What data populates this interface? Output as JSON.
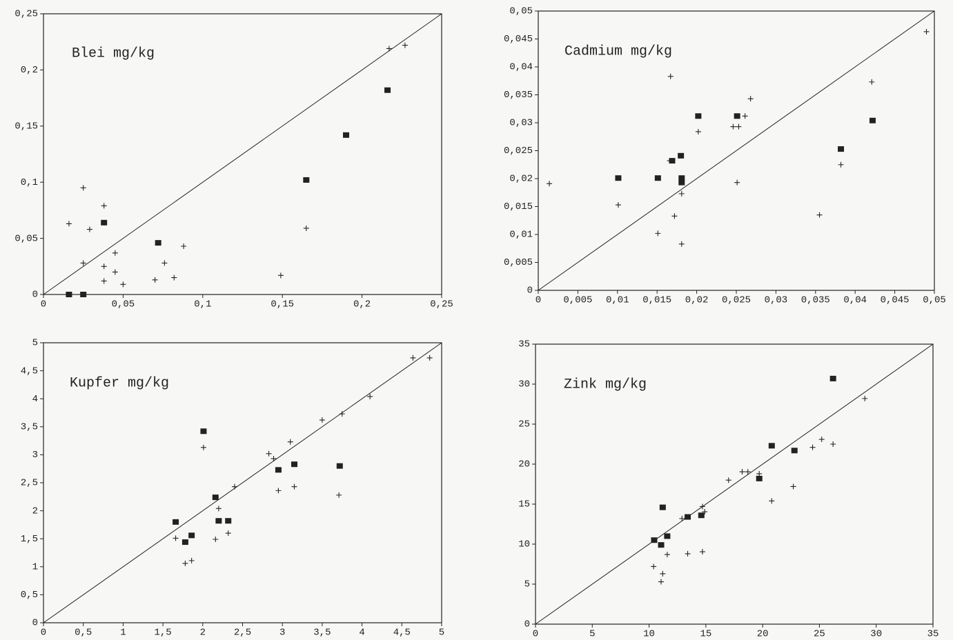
{
  "chart_data": [
    {
      "type": "scatter",
      "title": "Blei mg/kg",
      "xlim": [
        0,
        0.25
      ],
      "ylim": [
        0,
        0.25
      ],
      "xticks": [
        0,
        {
          "value": 0.05,
          "label": "0,05"
        },
        {
          "value": 0.1,
          "label": "0,1"
        },
        {
          "value": 0.15,
          "label": "0,15"
        },
        {
          "value": 0.2,
          "label": "0,2"
        },
        {
          "value": 0.25,
          "label": "0,25"
        }
      ],
      "yticks": [
        0,
        {
          "value": 0.05,
          "label": "0,05"
        },
        {
          "value": 0.1,
          "label": "0,1"
        },
        {
          "value": 0.15,
          "label": "0,15"
        },
        {
          "value": 0.2,
          "label": "0,2"
        },
        {
          "value": 0.25,
          "label": "0,25"
        }
      ],
      "series": [
        {
          "marker": "square",
          "color": "#222222",
          "x": [
            0.016,
            0.025,
            0.038,
            0.072,
            0.19,
            0.165,
            0.216
          ],
          "values": [
            0,
            0,
            0.064,
            0.046,
            0.142,
            0.102,
            0.182
          ]
        },
        {
          "marker": "plus",
          "color": "#222222",
          "x": [
            0.016,
            0.025,
            0.029,
            0.025,
            0.038,
            0.038,
            0.038,
            0.045,
            0.045,
            0.05,
            0.076,
            0.07,
            0.082,
            0.088,
            0.149,
            0.165,
            0.217,
            0.227
          ],
          "values": [
            0.063,
            0.095,
            0.058,
            0.028,
            0.079,
            0.025,
            0.012,
            0.02,
            0.037,
            0.009,
            0.028,
            0.013,
            0.015,
            0.043,
            0.017,
            0.059,
            0.219,
            0.222
          ]
        }
      ]
    },
    {
      "type": "scatter",
      "title": "Cadmium mg/kg",
      "xlim": [
        0,
        0.05
      ],
      "ylim": [
        0,
        0.05
      ],
      "xticks": [
        0,
        {
          "value": 0.005,
          "label": "0,005"
        },
        {
          "value": 0.01,
          "label": "0,01"
        },
        {
          "value": 0.015,
          "label": "0,015"
        },
        {
          "value": 0.02,
          "label": "0,02"
        },
        {
          "value": 0.025,
          "label": "0,025"
        },
        {
          "value": 0.03,
          "label": "0,03"
        },
        {
          "value": 0.035,
          "label": "0,035"
        },
        {
          "value": 0.04,
          "label": "0,04"
        },
        {
          "value": 0.045,
          "label": "0,045"
        },
        {
          "value": 0.05,
          "label": "0,05"
        }
      ],
      "yticks": [
        0,
        {
          "value": 0.005,
          "label": "0,005"
        },
        {
          "value": 0.01,
          "label": "0,01"
        },
        {
          "value": 0.015,
          "label": "0,015"
        },
        {
          "value": 0.02,
          "label": "0,02"
        },
        {
          "value": 0.025,
          "label": "0,025"
        },
        {
          "value": 0.03,
          "label": "0,03"
        },
        {
          "value": 0.035,
          "label": "0,035"
        },
        {
          "value": 0.04,
          "label": "0,04"
        },
        {
          "value": 0.045,
          "label": "0,045"
        },
        {
          "value": 0.05,
          "label": "0,05"
        }
      ],
      "series": [
        {
          "marker": "square",
          "color": "#222222",
          "x": [
            0.0101,
            0.0151,
            0.0169,
            0.018,
            0.0181,
            0.0181,
            0.0202,
            0.0251,
            0.0382,
            0.0422
          ],
          "values": [
            0.0201,
            0.0201,
            0.0232,
            0.0241,
            0.0201,
            0.0193,
            0.0312,
            0.0312,
            0.0253,
            0.0304
          ]
        },
        {
          "marker": "plus",
          "color": "#222222",
          "x": [
            0.0014,
            0.0101,
            0.0151,
            0.0167,
            0.0166,
            0.0181,
            0.0172,
            0.0181,
            0.0202,
            0.0246,
            0.0253,
            0.0261,
            0.0268,
            0.0251,
            0.0355,
            0.0382,
            0.0421,
            0.049
          ],
          "values": [
            0.0191,
            0.0153,
            0.0102,
            0.0383,
            0.0232,
            0.0173,
            0.0133,
            0.0083,
            0.0284,
            0.0293,
            0.0293,
            0.0312,
            0.0343,
            0.0193,
            0.0135,
            0.0225,
            0.0373,
            0.0463
          ]
        }
      ]
    },
    {
      "type": "scatter",
      "title": "Kupfer mg/kg",
      "xlim": [
        0,
        5
      ],
      "ylim": [
        0,
        5
      ],
      "xticks": [
        0,
        {
          "value": 0.5,
          "label": "0,5"
        },
        1,
        {
          "value": 1.5,
          "label": "1,5"
        },
        2,
        {
          "value": 2.5,
          "label": "2,5"
        },
        3,
        {
          "value": 3.5,
          "label": "3,5"
        },
        4,
        {
          "value": 4.5,
          "label": "4,5"
        },
        5
      ],
      "yticks": [
        0,
        {
          "value": 0.5,
          "label": "0,5"
        },
        1,
        {
          "value": 1.5,
          "label": "1,5"
        },
        2,
        {
          "value": 2.5,
          "label": "2,5"
        },
        3,
        {
          "value": 3.5,
          "label": "3,5"
        },
        4,
        {
          "value": 4.5,
          "label": "4,5"
        },
        5
      ],
      "series": [
        {
          "marker": "square",
          "color": "#222222",
          "x": [
            1.66,
            1.78,
            1.86,
            2.01,
            2.16,
            2.2,
            2.32,
            2.95,
            3.15,
            3.72
          ],
          "values": [
            1.8,
            1.44,
            1.56,
            3.42,
            2.24,
            1.82,
            1.82,
            2.73,
            2.83,
            2.8
          ]
        },
        {
          "marker": "plus",
          "color": "#222222",
          "x": [
            1.66,
            1.78,
            1.86,
            2.01,
            2.16,
            2.2,
            2.32,
            2.4,
            2.83,
            2.89,
            2.95,
            3.1,
            3.15,
            3.5,
            3.71,
            3.75,
            4.1,
            4.64,
            4.85
          ],
          "values": [
            1.51,
            1.06,
            1.11,
            3.13,
            1.49,
            2.04,
            1.6,
            2.43,
            3.02,
            2.93,
            2.36,
            3.23,
            2.43,
            3.62,
            2.28,
            3.73,
            4.04,
            4.73,
            4.73
          ]
        }
      ]
    },
    {
      "type": "scatter",
      "title": "Zink mg/kg",
      "xlim": [
        0,
        35
      ],
      "ylim": [
        0,
        35
      ],
      "xticks": [
        0,
        5,
        10,
        15,
        20,
        25,
        30,
        35
      ],
      "yticks": [
        0,
        5,
        10,
        15,
        20,
        25,
        30,
        35
      ],
      "series": [
        {
          "marker": "square",
          "color": "#222222",
          "x": [
            10.45,
            11.06,
            11.6,
            11.2,
            13.4,
            14.6,
            19.7,
            20.8,
            22.8,
            26.2
          ],
          "values": [
            10.5,
            9.9,
            11.0,
            14.6,
            13.4,
            13.6,
            18.2,
            22.3,
            21.7,
            30.7
          ]
        },
        {
          "marker": "plus",
          "color": "#222222",
          "x": [
            10.4,
            11.06,
            11.2,
            11.6,
            13.4,
            12.9,
            14.7,
            14.9,
            14.7,
            17.0,
            18.2,
            18.7,
            19.7,
            20.8,
            22.7,
            24.4,
            25.2,
            26.2,
            29.0
          ],
          "values": [
            7.2,
            5.3,
            6.3,
            8.7,
            8.8,
            13.2,
            9.05,
            14.05,
            14.7,
            18.0,
            19.05,
            19.05,
            18.8,
            15.4,
            17.2,
            22.1,
            23.1,
            22.5,
            28.2
          ]
        }
      ]
    }
  ]
}
